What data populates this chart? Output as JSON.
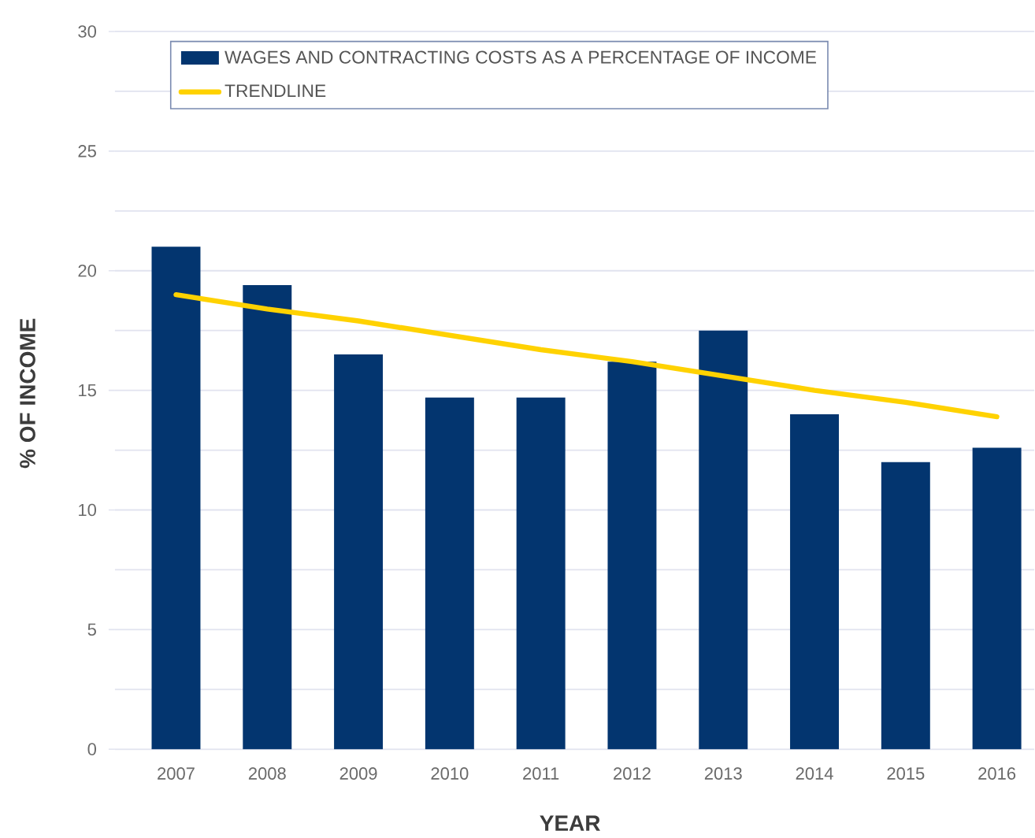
{
  "chart_data": {
    "type": "bar",
    "xlabel": "YEAR",
    "ylabel": "% OF INCOME",
    "categories": [
      "2007",
      "2008",
      "2009",
      "2010",
      "2011",
      "2012",
      "2013",
      "2014",
      "2015",
      "2016"
    ],
    "series": [
      {
        "name": "WAGES AND CONTRACTING COSTS AS A PERCENTAGE OF INCOME",
        "color": "#03356f",
        "values": [
          21.0,
          19.4,
          16.5,
          14.7,
          14.7,
          16.2,
          17.5,
          14.0,
          12.0,
          12.6
        ]
      },
      {
        "name": "TRENDLINE",
        "type": "line",
        "color": "#ffd200",
        "values": [
          19.0,
          18.4,
          17.9,
          17.3,
          16.7,
          16.2,
          15.6,
          15.0,
          14.5,
          13.9
        ]
      }
    ],
    "ylim": [
      0,
      30
    ],
    "yticks": [
      0,
      {
        "value": 2.5,
        "label": null
      },
      5,
      {
        "value": 7.5,
        "label": null
      },
      10,
      {
        "value": 12.5,
        "label": null
      },
      15,
      {
        "value": 17.5,
        "label": null
      },
      20,
      {
        "value": 22.5,
        "label": null
      },
      25,
      {
        "value": 27.5,
        "label": null
      },
      30
    ],
    "grid": "y",
    "legend": "top left"
  }
}
